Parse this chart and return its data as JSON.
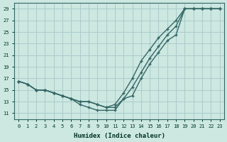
{
  "xlabel": "Humidex (Indice chaleur)",
  "bg_color": "#cce8e0",
  "grid_color": "#aacccc",
  "line_color": "#336666",
  "xlim": [
    -0.5,
    23.5
  ],
  "ylim": [
    10,
    30
  ],
  "xticks": [
    0,
    1,
    2,
    3,
    4,
    5,
    6,
    7,
    8,
    9,
    10,
    11,
    12,
    13,
    14,
    15,
    16,
    17,
    18,
    19,
    20,
    21,
    22,
    23
  ],
  "yticks": [
    11,
    13,
    15,
    17,
    19,
    21,
    23,
    25,
    27,
    29
  ],
  "curve1_x": [
    0,
    1,
    2,
    3,
    4,
    5,
    6,
    7,
    8,
    9,
    10,
    11,
    12,
    13,
    14,
    15,
    16,
    17,
    18,
    19,
    20,
    21,
    22,
    23
  ],
  "curve1_y": [
    16.5,
    16.0,
    15.0,
    15.0,
    14.5,
    14.0,
    13.5,
    13.0,
    13.0,
    12.5,
    12.0,
    12.0,
    13.5,
    15.5,
    18.0,
    20.5,
    22.5,
    24.5,
    26.0,
    29.0,
    29.0,
    29.0,
    29.0,
    29.0
  ],
  "curve2_x": [
    0,
    1,
    2,
    3,
    4,
    5,
    6,
    7,
    8,
    9,
    10,
    11,
    12,
    13,
    14,
    15,
    16,
    17,
    18,
    19,
    20,
    21,
    22,
    23
  ],
  "curve2_y": [
    16.5,
    16.0,
    15.0,
    15.0,
    14.5,
    14.0,
    13.5,
    13.0,
    13.0,
    12.5,
    12.0,
    12.5,
    14.5,
    17.0,
    20.0,
    22.0,
    24.0,
    25.5,
    27.0,
    29.0,
    29.0,
    29.0,
    29.0,
    29.0
  ],
  "curve3_x": [
    0,
    1,
    2,
    3,
    4,
    5,
    6,
    7,
    8,
    9,
    10,
    11,
    12,
    13,
    14,
    15,
    16,
    17,
    18,
    19,
    20,
    21,
    22,
    23
  ],
  "curve3_y": [
    16.5,
    16.0,
    15.0,
    15.0,
    14.5,
    14.0,
    13.5,
    12.5,
    12.0,
    11.5,
    11.5,
    11.5,
    13.5,
    14.0,
    17.0,
    19.5,
    21.5,
    23.5,
    24.5,
    29.0,
    29.0,
    29.0,
    29.0,
    29.0
  ]
}
